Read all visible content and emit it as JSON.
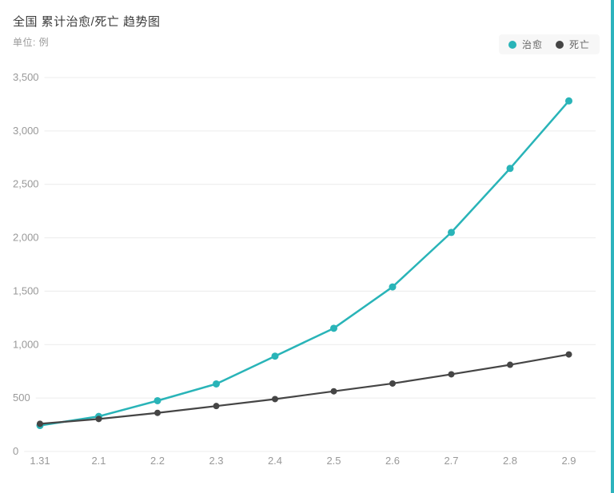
{
  "header": {
    "title": "全国 累计治愈/死亡 趋势图",
    "unit_label": "单位: 例"
  },
  "legend": {
    "items": [
      {
        "label": "治愈",
        "color": "#29b4b8"
      },
      {
        "label": "死亡",
        "color": "#454545"
      }
    ]
  },
  "colors": {
    "cured": "#29b4b8",
    "death": "#454545",
    "grid_line": "#ececec",
    "axis_text": "#999999",
    "legend_bg": "#f7f7f7",
    "right_stripe": "#2cb3bd"
  },
  "chart_data": {
    "type": "line",
    "title": "全国 累计治愈/死亡 趋势图",
    "unit": "单位: 例",
    "categories": [
      "1.31",
      "2.1",
      "2.2",
      "2.3",
      "2.4",
      "2.5",
      "2.6",
      "2.7",
      "2.8",
      "2.9"
    ],
    "series": [
      {
        "name": "治愈",
        "color": "#29b4b8",
        "values": [
          243,
          328,
          475,
          632,
          892,
          1153,
          1540,
          2050,
          2649,
          3281
        ]
      },
      {
        "name": "死亡",
        "color": "#454545",
        "values": [
          259,
          304,
          361,
          425,
          490,
          563,
          636,
          722,
          811,
          908
        ]
      }
    ],
    "xlabel": "",
    "ylabel": "",
    "ylim": [
      0,
      3500
    ],
    "y_ticks": [
      0,
      500,
      1000,
      1500,
      2000,
      2500,
      3000,
      3500
    ],
    "y_tick_labels": [
      "0",
      "500",
      "1,000",
      "1,500",
      "2,000",
      "2,500",
      "3,000",
      "3,500"
    ],
    "grid": true,
    "legend_position": "top-right"
  }
}
